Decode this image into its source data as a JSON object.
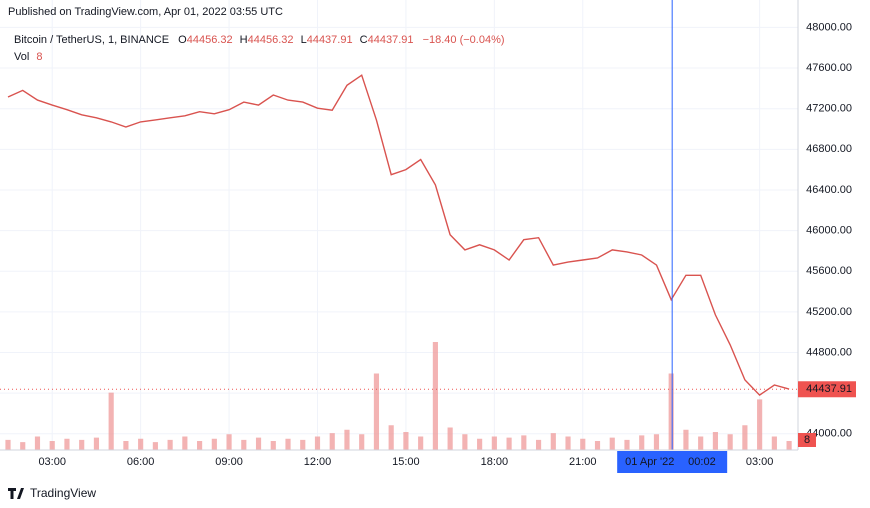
{
  "published": "Published on TradingView.com, Apr 01, 2022 03:55 UTC",
  "footer": "TradingView",
  "chart_data": {
    "type": "line",
    "title": "Bitcoin / TetherUS, 1, BINANCE",
    "ohlc": [
      {
        "key": "O",
        "value": 44456.32
      },
      {
        "key": "H",
        "value": 44456.32
      },
      {
        "key": "L",
        "value": 44437.91
      },
      {
        "key": "C",
        "value": 44437.91
      }
    ],
    "change": "−18.40 (−0.04%)",
    "volume_label": "Vol",
    "volume_value": 8,
    "last_value": 44437.91,
    "crosshair": {
      "x": 24.033,
      "date": "01 Apr '22",
      "time": "00:02"
    },
    "xlim": [
      1.5,
      28.2
    ],
    "xticks": [
      {
        "value": 3,
        "label": "03:00"
      },
      {
        "value": 6,
        "label": "06:00"
      },
      {
        "value": 9,
        "label": "09:00"
      },
      {
        "value": 12,
        "label": "12:00"
      },
      {
        "value": 15,
        "label": "15:00"
      },
      {
        "value": 18,
        "label": "18:00"
      },
      {
        "value": 21,
        "label": "21:00"
      },
      {
        "value": 27,
        "label": "03:00"
      }
    ],
    "ylim": [
      43840,
      48270
    ],
    "yticks": [
      {
        "value": 44000,
        "label": "44000.00"
      },
      {
        "value": 44400,
        "label": "44400.00"
      },
      {
        "value": 44800,
        "label": "44800.00"
      },
      {
        "value": 45200,
        "label": "45200.00"
      },
      {
        "value": 45600,
        "label": "45600.00"
      },
      {
        "value": 46000,
        "label": "46000.00"
      },
      {
        "value": 46400,
        "label": "46400.00"
      },
      {
        "value": 46800,
        "label": "46800.00"
      },
      {
        "value": 47200,
        "label": "47200.00"
      },
      {
        "value": 47600,
        "label": "47600.00"
      },
      {
        "value": 48000,
        "label": "48000.00"
      }
    ],
    "y2lim": [
      0,
      400
    ],
    "grid": true,
    "x": [
      1.5,
      2,
      2.5,
      3,
      3.5,
      4,
      4.5,
      5,
      5.5,
      6,
      6.5,
      7,
      7.5,
      8,
      8.5,
      9,
      9.5,
      10,
      10.5,
      11,
      11.5,
      12,
      12.5,
      13,
      13.5,
      14,
      14.5,
      15,
      15.5,
      16,
      16.5,
      17,
      17.5,
      18,
      18.5,
      19,
      19.5,
      20,
      20.5,
      21,
      21.5,
      22,
      22.5,
      23,
      23.5,
      24,
      24.5,
      25,
      25.5,
      26,
      26.5,
      27,
      27.5,
      28
    ],
    "series": [
      {
        "name": "Price",
        "color": "#d9534f",
        "values": [
          47315,
          47380,
          47285,
          47235,
          47190,
          47140,
          47110,
          47070,
          47020,
          47070,
          47090,
          47110,
          47130,
          47170,
          47150,
          47190,
          47265,
          47235,
          47335,
          47285,
          47265,
          47205,
          47185,
          47430,
          47530,
          47090,
          46550,
          46600,
          46700,
          46450,
          45960,
          45810,
          45860,
          45810,
          45710,
          45910,
          45930,
          45660,
          45690,
          45710,
          45730,
          45810,
          45790,
          45760,
          45660,
          45320,
          45560,
          45560,
          45170,
          44875,
          44530,
          44380,
          44480,
          44440
        ]
      },
      {
        "name": "Vol",
        "color": "#ef9a9a",
        "axis": "y2",
        "values": [
          9,
          7,
          12,
          8,
          10,
          9,
          11,
          51,
          8,
          10,
          7,
          9,
          12,
          8,
          10,
          14,
          9,
          11,
          8,
          10,
          9,
          12,
          15,
          18,
          14,
          68,
          22,
          16,
          12,
          96,
          20,
          14,
          10,
          12,
          11,
          13,
          9,
          15,
          12,
          10,
          8,
          11,
          9,
          13,
          14,
          68,
          18,
          12,
          16,
          14,
          22,
          45,
          12,
          8
        ]
      }
    ]
  }
}
